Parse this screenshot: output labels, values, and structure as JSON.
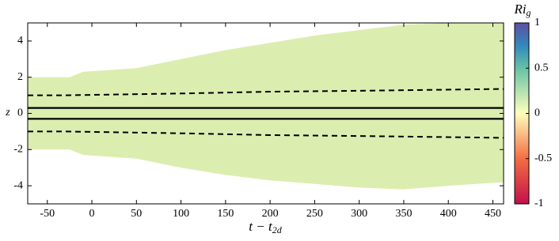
{
  "chart_data": {
    "type": "contour",
    "x_label": {
      "base": "t − t",
      "sub": "2d"
    },
    "y_label": "z",
    "colorbar_label": {
      "base": "Ri",
      "sub": "g"
    },
    "xlim": [
      -72,
      462
    ],
    "ylim": [
      -5,
      5
    ],
    "xticks": [
      -50,
      0,
      50,
      100,
      150,
      200,
      250,
      300,
      350,
      400,
      450
    ],
    "yticks": [
      -4,
      -2,
      0,
      2,
      4
    ],
    "clim": [
      -1,
      1
    ],
    "cticks": [
      -1,
      -0.5,
      0,
      0.5,
      1
    ],
    "colormap": [
      {
        "value": -1,
        "color": "#c2114b"
      },
      {
        "value": -0.5,
        "color": "#f46d43"
      },
      {
        "value": 0,
        "color": "#fefebd"
      },
      {
        "value": 0.5,
        "color": "#66c2a5"
      },
      {
        "value": 0.75,
        "color": "#3288bd"
      },
      {
        "value": 1,
        "color": "#5e4fa2"
      }
    ],
    "field_envelope": {
      "x": [
        -72,
        -25,
        -10,
        50,
        100,
        150,
        200,
        250,
        300,
        350,
        400,
        462
      ],
      "upper": [
        2,
        2,
        2.3,
        2.5,
        3.0,
        3.5,
        3.9,
        4.3,
        4.6,
        4.9,
        5,
        5
      ],
      "lower": [
        -2,
        -2,
        -2.3,
        -2.5,
        -3.0,
        -3.4,
        -3.7,
        -3.9,
        -4.1,
        -4.2,
        -4.0,
        -3.8
      ],
      "color": "#dcedb0"
    },
    "lines": [
      {
        "style": "dashed",
        "x": [
          -72,
          -30,
          100,
          200,
          300,
          462
        ],
        "values": [
          1,
          1,
          1.1,
          1.2,
          1.25,
          1.35
        ]
      },
      {
        "style": "dashed",
        "x": [
          -72,
          -30,
          100,
          200,
          300,
          462
        ],
        "values": [
          -1,
          -1,
          -1.1,
          -1.2,
          -1.25,
          -1.35
        ]
      },
      {
        "style": "solid",
        "x": [
          -72,
          462
        ],
        "values": [
          0.3,
          0.3
        ]
      },
      {
        "style": "solid",
        "x": [
          -72,
          462
        ],
        "values": [
          -0.3,
          -0.3
        ]
      }
    ]
  }
}
